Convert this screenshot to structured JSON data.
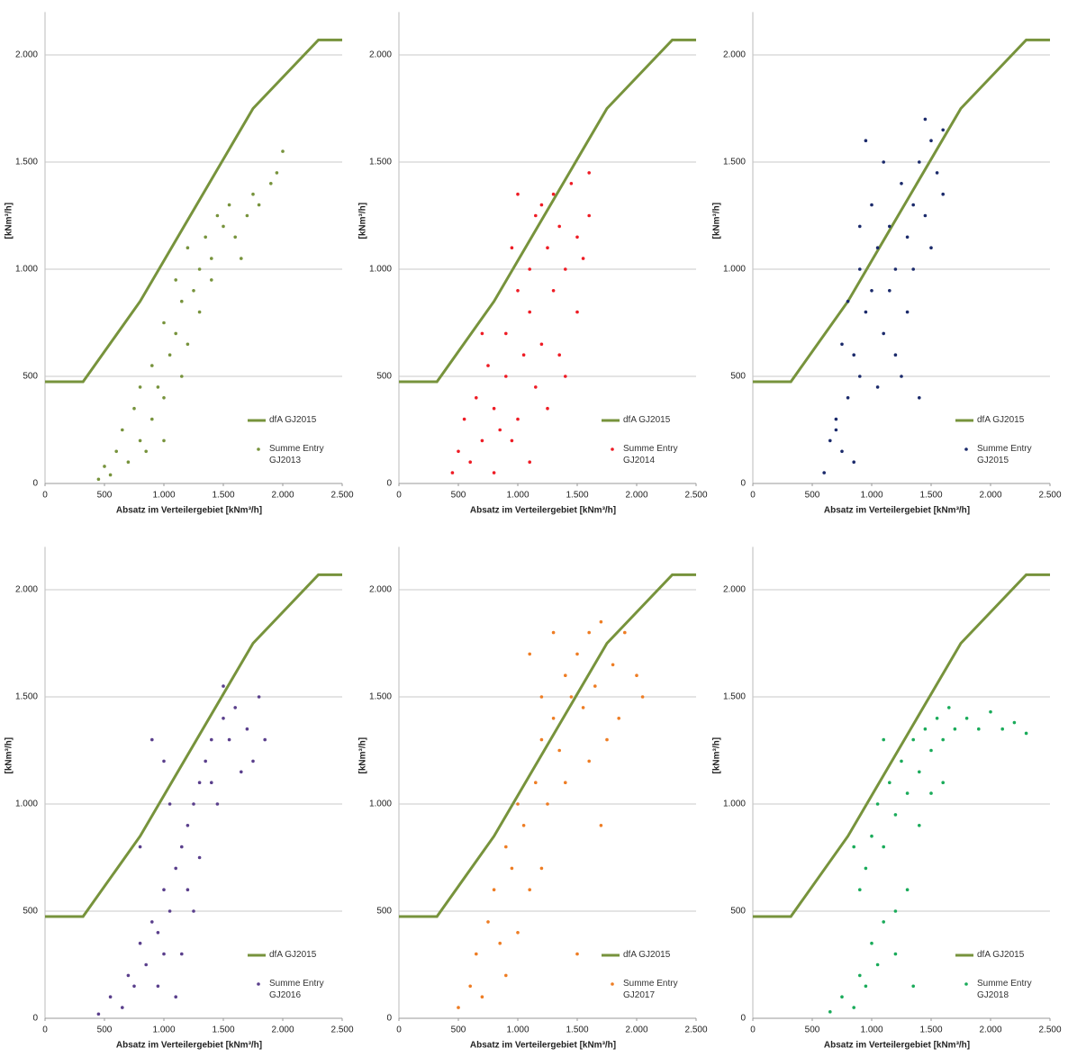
{
  "chart_data": [
    {
      "type": "scatter",
      "x_label": "Absatz im Verteilergebiet [kNm³/h]",
      "y_label": "[kNm³/h]",
      "xlim": [
        0,
        2500
      ],
      "ylim": [
        0,
        2200
      ],
      "grid": true,
      "xticks": [
        0,
        500,
        {
          "value": 1000,
          "label": "1.000"
        },
        {
          "value": 1500,
          "label": "1.500"
        },
        {
          "value": 2000,
          "label": "2.000"
        },
        {
          "value": 2500,
          "label": "2.500"
        }
      ],
      "yticks": [
        0,
        500,
        {
          "value": 1000,
          "label": "1.000"
        },
        {
          "value": 1500,
          "label": "1.500"
        },
        {
          "value": 2000,
          "label": "2.000"
        }
      ],
      "series": [
        {
          "name": "dfA GJ2015",
          "color": "#77933c",
          "mode": "line",
          "x": [
            0,
            320,
            800,
            1750,
            2300,
            2500
          ],
          "values": [
            475,
            475,
            850,
            1750,
            2070,
            2070
          ]
        },
        {
          "name": "Summe Entry GJ2013",
          "color": "#77933c",
          "mode": "markers",
          "x": [
            450,
            500,
            600,
            550,
            700,
            650,
            800,
            750,
            900,
            850,
            950,
            1000,
            1050,
            900,
            1100,
            1000,
            1150,
            1200,
            1100,
            1250,
            1300,
            1200,
            1350,
            1400,
            1500,
            1450,
            1600,
            1550,
            1700,
            1750,
            1800,
            1900,
            2000,
            1950,
            1300,
            1150,
            1000,
            1400,
            1650,
            800
          ],
          "values": [
            20,
            80,
            150,
            40,
            100,
            250,
            200,
            350,
            300,
            150,
            450,
            400,
            600,
            550,
            700,
            750,
            850,
            650,
            950,
            900,
            1000,
            1100,
            1150,
            1050,
            1200,
            1250,
            1150,
            1300,
            1250,
            1350,
            1300,
            1400,
            1550,
            1450,
            800,
            500,
            200,
            950,
            1050,
            450
          ]
        }
      ]
    },
    {
      "type": "scatter",
      "x_label": "Absatz im Verteilergebiet [kNm³/h]",
      "y_label": "[kNm³/h]",
      "xlim": [
        0,
        2500
      ],
      "ylim": [
        0,
        2200
      ],
      "grid": true,
      "xticks": [
        0,
        500,
        {
          "value": 1000,
          "label": "1.000"
        },
        {
          "value": 1500,
          "label": "1.500"
        },
        {
          "value": 2000,
          "label": "2.000"
        },
        {
          "value": 2500,
          "label": "2.500"
        }
      ],
      "yticks": [
        0,
        500,
        {
          "value": 1000,
          "label": "1.000"
        },
        {
          "value": 1500,
          "label": "1.500"
        },
        {
          "value": 2000,
          "label": "2.000"
        }
      ],
      "series": [
        {
          "name": "dfA GJ2015",
          "color": "#77933c",
          "mode": "line",
          "x": [
            0,
            320,
            800,
            1750,
            2300,
            2500
          ],
          "values": [
            475,
            475,
            850,
            1750,
            2070,
            2070
          ]
        },
        {
          "name": "Summe Entry GJ2014",
          "color": "#ee1c25",
          "mode": "markers",
          "x": [
            450,
            500,
            600,
            550,
            700,
            650,
            800,
            750,
            900,
            850,
            950,
            1000,
            1050,
            900,
            1100,
            1000,
            1150,
            1200,
            1100,
            1250,
            1300,
            1200,
            1350,
            1400,
            1500,
            1450,
            1600,
            1550,
            1500,
            1350,
            1250,
            1100,
            800,
            1000,
            1300,
            1600,
            700,
            1400,
            950,
            1150
          ],
          "values": [
            50,
            150,
            100,
            300,
            200,
            400,
            350,
            550,
            500,
            250,
            200,
            300,
            600,
            700,
            800,
            900,
            450,
            650,
            1000,
            1100,
            900,
            1300,
            1200,
            1000,
            1150,
            1400,
            1250,
            1050,
            800,
            600,
            350,
            100,
            50,
            1350,
            1350,
            1450,
            700,
            500,
            1100,
            1250
          ]
        }
      ]
    },
    {
      "type": "scatter",
      "x_label": "Absatz im Verteilergebiet [kNm³/h]",
      "y_label": "[kNm³/h]",
      "xlim": [
        0,
        2500
      ],
      "ylim": [
        0,
        2200
      ],
      "grid": true,
      "xticks": [
        0,
        500,
        {
          "value": 1000,
          "label": "1.000"
        },
        {
          "value": 1500,
          "label": "1.500"
        },
        {
          "value": 2000,
          "label": "2.000"
        },
        {
          "value": 2500,
          "label": "2.500"
        }
      ],
      "yticks": [
        0,
        500,
        {
          "value": 1000,
          "label": "1.000"
        },
        {
          "value": 1500,
          "label": "1.500"
        },
        {
          "value": 2000,
          "label": "2.000"
        }
      ],
      "series": [
        {
          "name": "dfA GJ2015",
          "color": "#77933c",
          "mode": "line",
          "x": [
            0,
            320,
            800,
            1750,
            2300,
            2500
          ],
          "values": [
            475,
            475,
            850,
            1750,
            2070,
            2070
          ]
        },
        {
          "name": "Summe Entry GJ2015",
          "color": "#1b2a6b",
          "mode": "markers",
          "x": [
            600,
            650,
            700,
            750,
            800,
            850,
            900,
            750,
            950,
            900,
            1000,
            1050,
            1100,
            1150,
            1000,
            1200,
            1250,
            1300,
            1350,
            1400,
            1450,
            1500,
            1550,
            1600,
            1450,
            1200,
            1300,
            1100,
            950,
            1350,
            1250,
            900,
            800,
            700,
            1050,
            1500,
            1150,
            1400,
            850,
            1600
          ],
          "values": [
            50,
            200,
            300,
            150,
            400,
            600,
            500,
            650,
            800,
            1000,
            900,
            1100,
            700,
            1200,
            1300,
            1000,
            1400,
            1150,
            1300,
            1500,
            1250,
            1600,
            1450,
            1650,
            1700,
            600,
            800,
            1500,
            1600,
            1000,
            500,
            1200,
            850,
            250,
            450,
            1100,
            900,
            400,
            100,
            1350
          ]
        }
      ]
    },
    {
      "type": "scatter",
      "x_label": "Absatz im Verteilergebiet [kNm³/h]",
      "y_label": "[kNm³/h]",
      "xlim": [
        0,
        2500
      ],
      "ylim": [
        0,
        2200
      ],
      "grid": true,
      "xticks": [
        0,
        500,
        {
          "value": 1000,
          "label": "1.000"
        },
        {
          "value": 1500,
          "label": "1.500"
        },
        {
          "value": 2000,
          "label": "2.000"
        },
        {
          "value": 2500,
          "label": "2.500"
        }
      ],
      "yticks": [
        0,
        500,
        {
          "value": 1000,
          "label": "1.000"
        },
        {
          "value": 1500,
          "label": "1.500"
        },
        {
          "value": 2000,
          "label": "2.000"
        }
      ],
      "series": [
        {
          "name": "dfA GJ2015",
          "color": "#77933c",
          "mode": "line",
          "x": [
            0,
            320,
            800,
            1750,
            2300,
            2500
          ],
          "values": [
            475,
            475,
            850,
            1750,
            2070,
            2070
          ]
        },
        {
          "name": "Summe Entry GJ2016",
          "color": "#5a3f8c",
          "mode": "markers",
          "x": [
            450,
            550,
            650,
            700,
            750,
            800,
            850,
            900,
            950,
            1000,
            1050,
            1000,
            1100,
            1150,
            1100,
            1200,
            1250,
            1300,
            1350,
            1400,
            1500,
            1550,
            1600,
            1700,
            1800,
            1850,
            1750,
            1650,
            1450,
            1200,
            1300,
            1000,
            900,
            800,
            1500,
            1400,
            1250,
            1150,
            950,
            1050
          ],
          "values": [
            20,
            100,
            50,
            200,
            150,
            350,
            250,
            450,
            400,
            600,
            500,
            300,
            700,
            800,
            100,
            900,
            1000,
            1100,
            1200,
            1300,
            1400,
            1300,
            1450,
            1350,
            1500,
            1300,
            1200,
            1150,
            1000,
            600,
            750,
            1200,
            1300,
            800,
            1550,
            1100,
            500,
            300,
            150,
            1000
          ]
        }
      ]
    },
    {
      "type": "scatter",
      "x_label": "Absatz im Verteilergebiet [kNm³/h]",
      "y_label": "[kNm³/h]",
      "xlim": [
        0,
        2500
      ],
      "ylim": [
        0,
        2200
      ],
      "grid": true,
      "xticks": [
        0,
        500,
        {
          "value": 1000,
          "label": "1.000"
        },
        {
          "value": 1500,
          "label": "1.500"
        },
        {
          "value": 2000,
          "label": "2.000"
        },
        {
          "value": 2500,
          "label": "2.500"
        }
      ],
      "yticks": [
        0,
        500,
        {
          "value": 1000,
          "label": "1.000"
        },
        {
          "value": 1500,
          "label": "1.500"
        },
        {
          "value": 2000,
          "label": "2.000"
        }
      ],
      "series": [
        {
          "name": "dfA GJ2015",
          "color": "#77933c",
          "mode": "line",
          "x": [
            0,
            320,
            800,
            1750,
            2300,
            2500
          ],
          "values": [
            475,
            475,
            850,
            1750,
            2070,
            2070
          ]
        },
        {
          "name": "Summe Entry GJ2017",
          "color": "#ee7d24",
          "mode": "markers",
          "x": [
            500,
            600,
            650,
            700,
            750,
            800,
            850,
            900,
            950,
            1000,
            1050,
            1100,
            1150,
            1200,
            1250,
            1300,
            1350,
            1400,
            1450,
            1500,
            1550,
            1600,
            1650,
            1700,
            1800,
            1900,
            2000,
            2050,
            1850,
            1750,
            1400,
            1200,
            1000,
            900,
            1300,
            1100,
            1600,
            1700,
            1500,
            1200
          ],
          "values": [
            50,
            150,
            300,
            100,
            450,
            600,
            350,
            800,
            700,
            1000,
            900,
            600,
            1100,
            1300,
            1000,
            1400,
            1250,
            1600,
            1500,
            1700,
            1450,
            1800,
            1550,
            1850,
            1650,
            1800,
            1600,
            1500,
            1400,
            1300,
            1100,
            700,
            400,
            200,
            1800,
            1700,
            1200,
            900,
            300,
            1500
          ]
        }
      ]
    },
    {
      "type": "scatter",
      "x_label": "Absatz im Verteilergebiet [kNm³/h]",
      "y_label": "[kNm³/h]",
      "xlim": [
        0,
        2500
      ],
      "ylim": [
        0,
        2200
      ],
      "grid": true,
      "xticks": [
        0,
        500,
        {
          "value": 1000,
          "label": "1.000"
        },
        {
          "value": 1500,
          "label": "1.500"
        },
        {
          "value": 2000,
          "label": "2.000"
        },
        {
          "value": 2500,
          "label": "2.500"
        }
      ],
      "yticks": [
        0,
        500,
        {
          "value": 1000,
          "label": "1.000"
        },
        {
          "value": 1500,
          "label": "1.500"
        },
        {
          "value": 2000,
          "label": "2.000"
        }
      ],
      "series": [
        {
          "name": "dfA GJ2015",
          "color": "#77933c",
          "mode": "line",
          "x": [
            0,
            320,
            800,
            1750,
            2300,
            2500
          ],
          "values": [
            475,
            475,
            850,
            1750,
            2070,
            2070
          ]
        },
        {
          "name": "Summe Entry GJ2018",
          "color": "#1aab5a",
          "mode": "markers",
          "x": [
            650,
            750,
            850,
            900,
            950,
            1000,
            1050,
            1100,
            1200,
            900,
            950,
            1000,
            1050,
            1100,
            1150,
            1200,
            1250,
            1300,
            1350,
            1400,
            1450,
            1500,
            1550,
            1600,
            1650,
            1700,
            1800,
            1900,
            2000,
            2100,
            2200,
            2300,
            1300,
            1400,
            1200,
            850,
            1500,
            1350,
            1100,
            1600
          ],
          "values": [
            30,
            100,
            50,
            200,
            150,
            350,
            250,
            450,
            300,
            600,
            700,
            850,
            1000,
            800,
            1100,
            950,
            1200,
            1050,
            1300,
            1150,
            1350,
            1250,
            1400,
            1300,
            1450,
            1350,
            1400,
            1350,
            1430,
            1350,
            1380,
            1330,
            600,
            900,
            500,
            800,
            1050,
            150,
            1300,
            1100
          ]
        }
      ]
    }
  ]
}
